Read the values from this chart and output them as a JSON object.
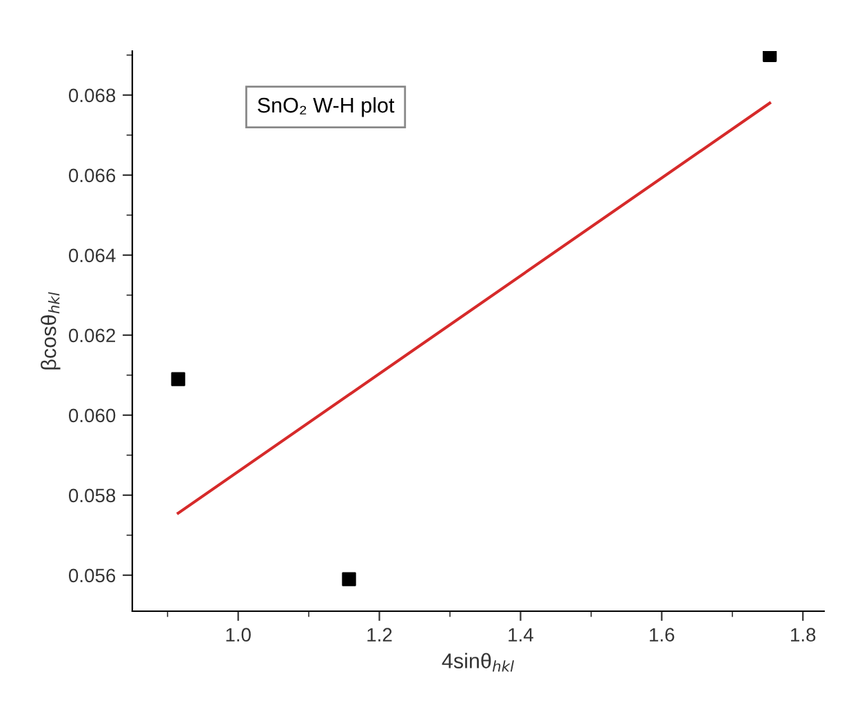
{
  "chart_data": {
    "type": "scatter",
    "xlabel": "4sinθ$_{hkl}$",
    "ylabel": "βcosθ$_{hkl}$",
    "annotations": [
      "SnO₂ W-H plot"
    ],
    "x": [
      0.915,
      1.157,
      1.753
    ],
    "series": [
      {
        "color": "#000000",
        "marker": "square",
        "values": [
          0.0609,
          0.0559,
          0.069
        ]
      },
      {
        "type": "line",
        "color": "#d62a2a",
        "x": [
          0.915,
          1.753
        ],
        "values": [
          0.05755,
          0.0678
        ]
      }
    ],
    "xlim": [
      0.85,
      1.83
    ],
    "ylim": [
      0.0551,
      0.0691
    ],
    "xticks": [
      {
        "value": 1.0,
        "label": "1.0"
      },
      {
        "value": 1.2,
        "label": "1.2"
      },
      {
        "value": 1.4,
        "label": "1.4"
      },
      {
        "value": 1.6,
        "label": "1.6"
      },
      {
        "value": 1.8,
        "label": "1.8"
      }
    ],
    "yticks": [
      {
        "value": 0.056,
        "label": "0.056"
      },
      {
        "value": 0.058,
        "label": "0.058"
      },
      {
        "value": 0.06,
        "label": "0.060"
      },
      {
        "value": 0.062,
        "label": "0.062"
      },
      {
        "value": 0.064,
        "label": "0.064"
      },
      {
        "value": 0.066,
        "label": "0.066"
      },
      {
        "value": 0.068,
        "label": "0.068"
      }
    ],
    "grid": false,
    "legend": false
  }
}
